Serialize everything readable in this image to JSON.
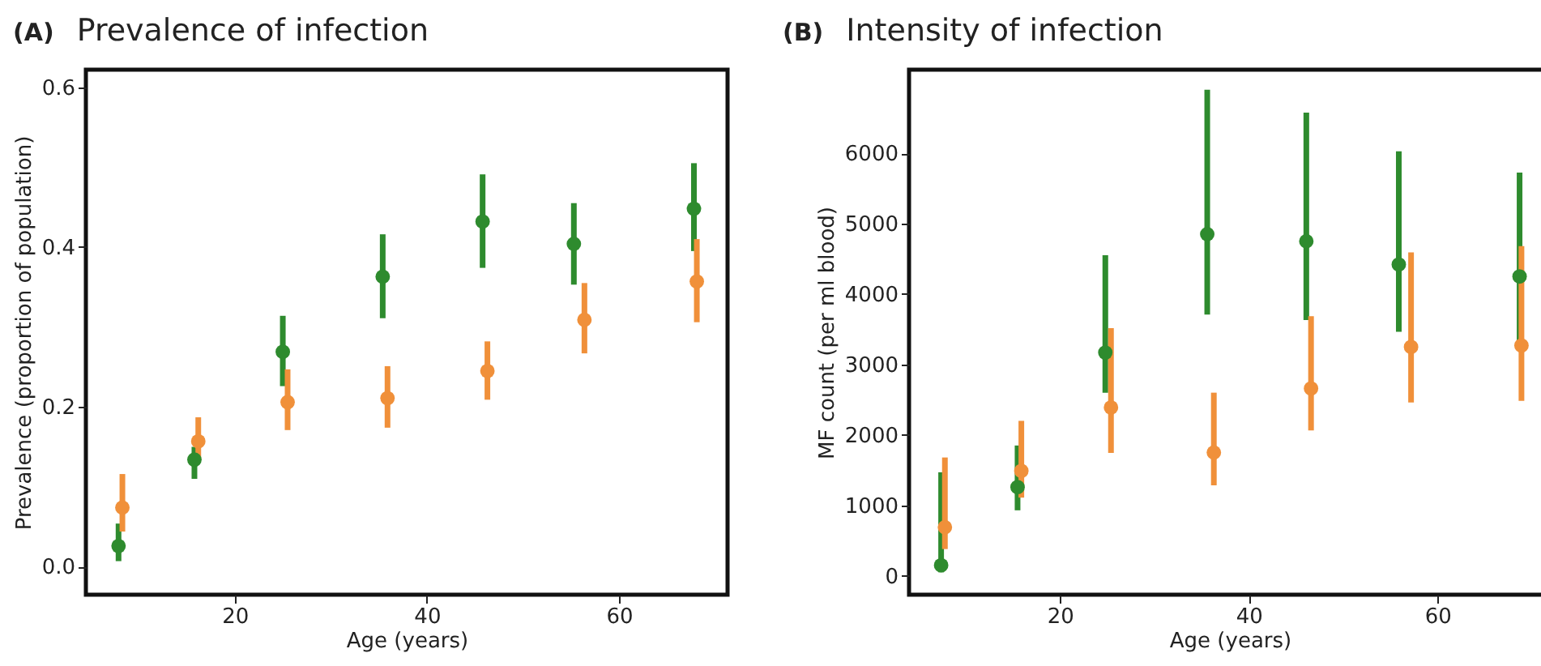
{
  "chart_data": [
    {
      "type": "scatter",
      "title": "Prevalence of infection",
      "annotations": [
        "(A)"
      ],
      "xlabel": "Age (years)",
      "ylabel": "Prevalence (proportion of population)",
      "xlim": [
        4.5,
        71.3
      ],
      "xticks": [
        20,
        40,
        60
      ],
      "ylim": [
        -0.035,
        0.622
      ],
      "yticks": [
        {
          "value": 0,
          "label": "0.0"
        },
        0.2,
        0.4,
        0.6
      ],
      "marker": "circle",
      "legend": false,
      "series": [
        {
          "color": "#2e8b2e",
          "x": [
            7.9,
            15.8,
            25,
            35.4,
            45.8,
            55.3,
            67.8
          ],
          "values": [
            0.026,
            0.134,
            0.269,
            0.363,
            0.432,
            0.404,
            0.448
          ],
          "errors": [
            [
              0.007,
              0.054
            ],
            [
              0.11,
              0.15
            ],
            [
              0.226,
              0.314
            ],
            [
              0.311,
              0.416
            ],
            [
              0.374,
              0.491
            ],
            [
              0.353,
              0.455
            ],
            [
              0.395,
              0.505
            ]
          ]
        },
        {
          "color": "#f0903a",
          "x": [
            8.3,
            16.2,
            25.5,
            35.9,
            46.3,
            56.4,
            68.1
          ],
          "values": [
            0.074,
            0.157,
            0.206,
            0.211,
            0.245,
            0.309,
            0.357
          ],
          "errors": [
            [
              0.044,
              0.116
            ],
            [
              0.135,
              0.187
            ],
            [
              0.171,
              0.247
            ],
            [
              0.174,
              0.251
            ],
            [
              0.209,
              0.282
            ],
            [
              0.267,
              0.355
            ],
            [
              0.306,
              0.41
            ]
          ]
        }
      ]
    },
    {
      "type": "scatter",
      "title": "Intensity of infection",
      "annotations": [
        "(B)"
      ],
      "xlabel": "Age (years)",
      "ylabel": "MF count (per ml blood)",
      "xlim": [
        4,
        72
      ],
      "xticks": [
        20,
        40,
        60
      ],
      "ylim": [
        -268,
        7185
      ],
      "yticks": [
        0,
        1000,
        2000,
        3000,
        4000,
        5000,
        6000
      ],
      "marker": "circle",
      "legend": false,
      "series": [
        {
          "color": "#2e8b2e",
          "x": [
            7.4,
            15.5,
            24.8,
            35.6,
            46.1,
            55.9,
            68.7
          ],
          "values": [
            150,
            1260,
            3170,
            4850,
            4750,
            4420,
            4250
          ],
          "errors": [
            [
              50,
              1470
            ],
            [
              930,
              1850
            ],
            [
              2600,
              4550
            ],
            [
              3710,
              6900
            ],
            [
              3630,
              6575
            ],
            [
              3465,
              6025
            ],
            [
              3300,
              5725
            ]
          ]
        },
        {
          "color": "#f0903a",
          "x": [
            7.8,
            15.9,
            25.4,
            36.3,
            46.6,
            57.2,
            68.9
          ],
          "values": [
            690,
            1490,
            2390,
            1750,
            2660,
            3250,
            3270
          ],
          "errors": [
            [
              380,
              1680
            ],
            [
              1110,
              2200
            ],
            [
              1745,
              3515
            ],
            [
              1285,
              2600
            ],
            [
              2065,
              3685
            ],
            [
              2460,
              4590
            ],
            [
              2485,
              4680
            ]
          ]
        }
      ]
    }
  ]
}
